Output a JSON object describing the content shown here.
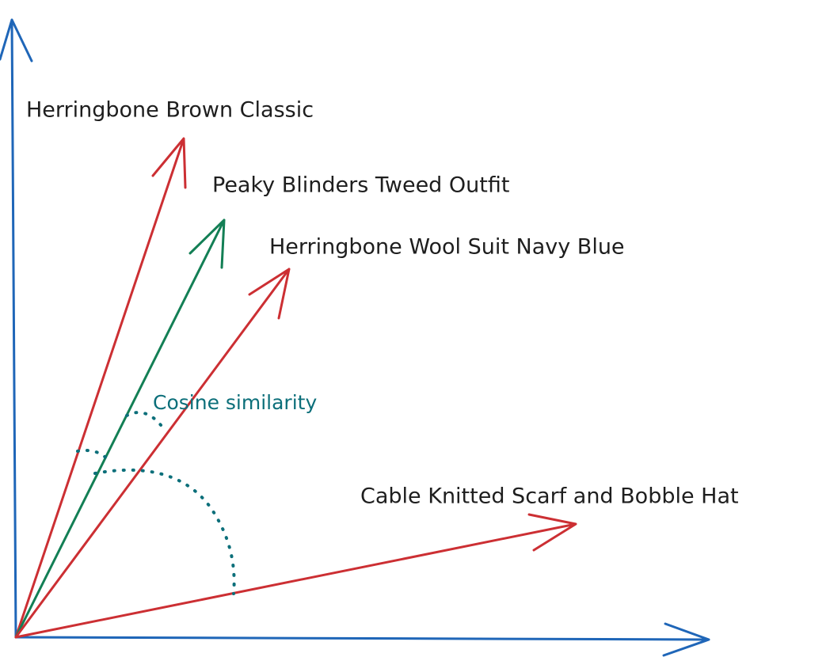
{
  "vectors": [
    {
      "label": "Herringbone Brown Classic"
    },
    {
      "label": "Peaky Blinders Tweed Outfit"
    },
    {
      "label": "Herringbone Wool Suit Navy Blue"
    },
    {
      "label": "Cable Knitted Scarf and Bobble Hat"
    }
  ],
  "annotation": "Cosine similarity"
}
